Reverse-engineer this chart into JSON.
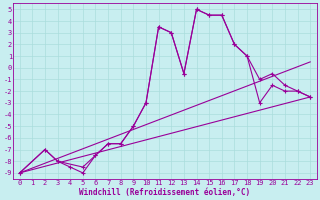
{
  "xlabel": "Windchill (Refroidissement éolien,°C)",
  "background_color": "#c8eef0",
  "line_color": "#990099",
  "grid_color": "#aadddd",
  "xlim": [
    -0.5,
    23.5
  ],
  "ylim": [
    -9.5,
    5.5
  ],
  "xticks": [
    0,
    1,
    2,
    3,
    4,
    5,
    6,
    7,
    8,
    9,
    10,
    11,
    12,
    13,
    14,
    15,
    16,
    17,
    18,
    19,
    20,
    21,
    22,
    23
  ],
  "yticks": [
    5,
    4,
    3,
    2,
    1,
    0,
    -1,
    -2,
    -3,
    -4,
    -5,
    -6,
    -7,
    -8,
    -9
  ],
  "series": [
    {
      "x": [
        0,
        2,
        3,
        4,
        5,
        6,
        7,
        8,
        9,
        10,
        11,
        12,
        13,
        14,
        15,
        16,
        17,
        18,
        19,
        20,
        21,
        22,
        23
      ],
      "y": [
        -9,
        -7,
        -8,
        -8.5,
        -9,
        -7.5,
        -6.5,
        -6.5,
        -5,
        -3,
        3.5,
        3,
        -0.5,
        5,
        4.5,
        4.5,
        2,
        1,
        -3,
        -1.5,
        -2,
        -2,
        -2.5
      ],
      "marker": true
    },
    {
      "x": [
        0,
        2,
        3,
        5,
        6,
        7,
        8,
        9,
        10,
        11,
        12,
        13,
        14,
        15,
        16,
        17,
        18,
        19,
        20,
        21,
        22,
        23
      ],
      "y": [
        -9,
        -7,
        -8,
        -8.5,
        -7.5,
        -6.5,
        -6.5,
        -5,
        -3,
        3.5,
        3,
        -0.5,
        5,
        4.5,
        4.5,
        2,
        1,
        -1,
        -0.5,
        -1.5,
        -2,
        -2.5
      ],
      "marker": true
    },
    {
      "x": [
        0,
        23
      ],
      "y": [
        -9,
        -2.5
      ],
      "marker": false
    },
    {
      "x": [
        0,
        23
      ],
      "y": [
        -9,
        0.5
      ],
      "marker": false
    }
  ]
}
